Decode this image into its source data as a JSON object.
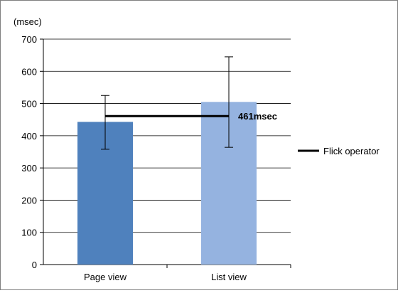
{
  "chart_data": {
    "type": "bar",
    "y_unit_label": "(msec)",
    "categories": [
      "Page view",
      "List view"
    ],
    "values": [
      443,
      505
    ],
    "error_bars": [
      {
        "low": 358,
        "high": 525
      },
      {
        "low": 364,
        "high": 645
      }
    ],
    "bar_colors": [
      "#4f81bd",
      "#95b3e0"
    ],
    "ylim": [
      0,
      700
    ],
    "yticks": [
      0,
      100,
      200,
      300,
      400,
      500,
      600,
      700
    ],
    "ytick_labels": [
      "0",
      "100",
      "200",
      "300",
      "400",
      "500",
      "600",
      "700"
    ],
    "grid": true,
    "reference_line": {
      "value": 461,
      "label": "461msec",
      "color": "#000000"
    },
    "legend": {
      "position": "right",
      "entries": [
        {
          "label": "Flick operator",
          "color": "#000000"
        }
      ]
    }
  }
}
